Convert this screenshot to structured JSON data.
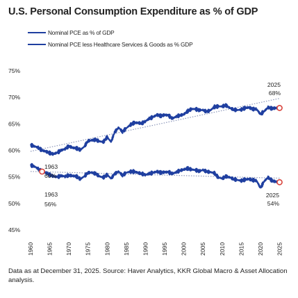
{
  "chart_data": {
    "type": "line",
    "title": "U.S. Personal Consumption Expenditure as % of GDP",
    "xlabel": "",
    "ylabel": "",
    "x_range": [
      1960,
      2026
    ],
    "ylim": [
      45,
      75
    ],
    "y_ticks": [
      "45%",
      "50%",
      "55%",
      "60%",
      "65%",
      "70%",
      "75%"
    ],
    "x_ticks": [
      "1960",
      "1965",
      "1970",
      "1975",
      "1980",
      "1985",
      "1990",
      "1995",
      "2000",
      "2005",
      "2010",
      "2015",
      "2020",
      "2025"
    ],
    "grid": false,
    "legend_position": "top-left",
    "series": [
      {
        "name": "Nominal PCE as % of GDP",
        "color": "#1f3fa0",
        "trend_color": "#8a95b8",
        "x": [
          1960,
          1961,
          1962,
          1963,
          1964,
          1965,
          1966,
          1967,
          1968,
          1969,
          1970,
          1971,
          1972,
          1973,
          1974,
          1975,
          1976,
          1977,
          1978,
          1979,
          1980,
          1981,
          1982,
          1983,
          1984,
          1985,
          1986,
          1987,
          1988,
          1989,
          1990,
          1991,
          1992,
          1993,
          1994,
          1995,
          1996,
          1997,
          1998,
          1999,
          2000,
          2001,
          2002,
          2003,
          2004,
          2005,
          2006,
          2007,
          2008,
          2009,
          2010,
          2011,
          2012,
          2013,
          2014,
          2015,
          2016,
          2017,
          2018,
          2019,
          2020,
          2021,
          2022,
          2023,
          2024,
          2025
        ],
        "y": [
          61.0,
          60.8,
          60.5,
          60.0,
          59.8,
          59.5,
          59.3,
          59.6,
          60.0,
          60.3,
          60.8,
          60.5,
          60.4,
          60.1,
          60.7,
          61.8,
          61.9,
          62.0,
          61.7,
          61.6,
          62.5,
          61.6,
          63.5,
          64.3,
          63.5,
          64.2,
          64.8,
          65.2,
          65.2,
          65.1,
          65.5,
          66.0,
          66.3,
          66.7,
          66.5,
          66.7,
          66.6,
          66.0,
          66.4,
          66.6,
          66.8,
          67.4,
          67.8,
          67.8,
          67.6,
          67.6,
          67.3,
          67.6,
          68.2,
          68.3,
          68.3,
          68.5,
          68.0,
          67.7,
          67.6,
          67.7,
          68.0,
          68.1,
          67.8,
          67.8,
          66.8,
          67.4,
          68.1,
          67.9,
          68.0,
          68.0
        ]
      },
      {
        "name": "Nominal PCE less Healthcare Services & Goods as % GDP",
        "color": "#1f3fa0",
        "trend_color": "#8a95b8",
        "x": [
          1960,
          1961,
          1962,
          1963,
          1964,
          1965,
          1966,
          1967,
          1968,
          1969,
          1970,
          1971,
          1972,
          1973,
          1974,
          1975,
          1976,
          1977,
          1978,
          1979,
          1980,
          1981,
          1982,
          1983,
          1984,
          1985,
          1986,
          1987,
          1988,
          1989,
          1990,
          1991,
          1992,
          1993,
          1994,
          1995,
          1996,
          1997,
          1998,
          1999,
          2000,
          2001,
          2002,
          2003,
          2004,
          2005,
          2006,
          2007,
          2008,
          2009,
          2010,
          2011,
          2012,
          2013,
          2014,
          2015,
          2016,
          2017,
          2018,
          2019,
          2020,
          2021,
          2022,
          2023,
          2024,
          2025
        ],
        "y": [
          57.2,
          57.0,
          56.5,
          56.0,
          55.8,
          55.4,
          55.1,
          55.0,
          55.2,
          55.1,
          55.3,
          55.2,
          55.1,
          54.6,
          55.1,
          55.8,
          55.8,
          55.6,
          55.1,
          54.9,
          55.4,
          54.7,
          55.6,
          56.0,
          55.3,
          55.8,
          56.0,
          56.0,
          55.8,
          55.6,
          55.4,
          55.6,
          55.8,
          56.0,
          55.8,
          55.9,
          55.9,
          55.6,
          55.9,
          56.2,
          56.4,
          56.6,
          56.4,
          56.3,
          56.1,
          56.3,
          56.0,
          55.9,
          55.7,
          54.9,
          54.7,
          55.1,
          54.9,
          54.6,
          54.4,
          54.3,
          54.5,
          54.6,
          54.4,
          54.3,
          52.9,
          54.2,
          54.9,
          54.3,
          54.1,
          54.0
        ]
      }
    ],
    "annotations": [
      {
        "year": "1963",
        "value": "60%"
      },
      {
        "year": "2025",
        "value": "68%"
      },
      {
        "year": "1963",
        "value": "56%"
      },
      {
        "year": "2025",
        "value": "54%"
      }
    ]
  },
  "footnote": "Data as at December 31, 2025. Source: Haver Analytics, KKR Global Macro & Asset Allocation analysis."
}
